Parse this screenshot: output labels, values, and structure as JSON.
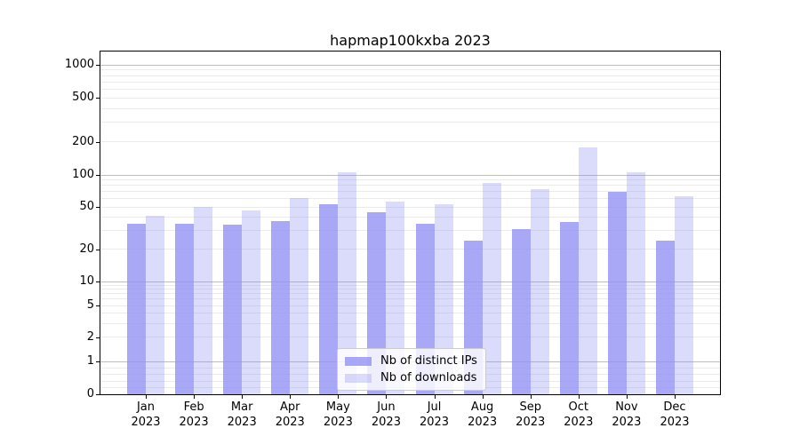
{
  "chart_data": {
    "type": "bar",
    "title": "hapmap100kxba 2023",
    "scale": "symlog",
    "categories": [
      "Jan 2023",
      "Feb 2023",
      "Mar 2023",
      "Apr 2023",
      "May 2023",
      "Jun 2023",
      "Jul 2023",
      "Aug 2023",
      "Sep 2023",
      "Oct 2023",
      "Nov 2023",
      "Dec 2023"
    ],
    "series": [
      {
        "name": "Nb of distinct IPs",
        "color": "#9292f4",
        "alpha": 0.8,
        "values": [
          35,
          35,
          34,
          37,
          53,
          45,
          35,
          24,
          31,
          36,
          70,
          24
        ]
      },
      {
        "name": "Nb of downloads",
        "color": "#9292f4",
        "alpha": 0.33,
        "values": [
          41,
          50,
          46,
          61,
          105,
          56,
          53,
          84,
          74,
          178,
          105,
          63
        ]
      }
    ],
    "y_ticks": [
      0,
      1,
      2,
      5,
      10,
      20,
      50,
      100,
      200,
      500,
      1000
    ],
    "ylim": [
      0,
      1322
    ],
    "xlabel": "",
    "ylabel": "",
    "grid": true,
    "legend_position": "lower center"
  },
  "colors": {
    "bar_distinct_ips": "#a8a8f6",
    "bar_downloads": "#dbdbf8",
    "grid_major": "#bdbdbd",
    "grid_minor": "#ebebeb",
    "spine": "#000000",
    "background": "#ffffff"
  }
}
